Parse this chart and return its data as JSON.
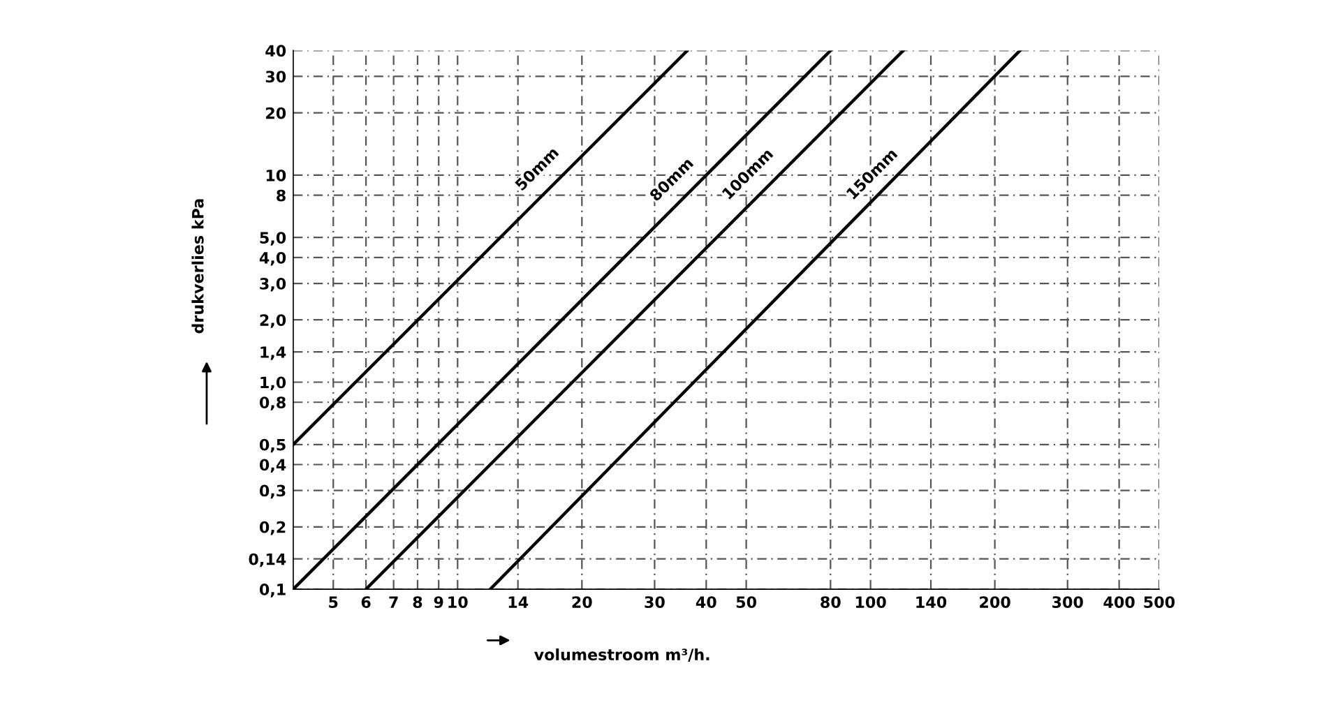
{
  "chart_data": {
    "type": "line",
    "log": "xy",
    "xlabel": "volumestroom m³/h.",
    "ylabel": "drukverlies kPa",
    "xlim": [
      4,
      500
    ],
    "ylim": [
      0.1,
      40
    ],
    "xticks": [
      5,
      6,
      7,
      8,
      9,
      10,
      14,
      20,
      30,
      40,
      50,
      80,
      100,
      140,
      200,
      300,
      400,
      500
    ],
    "yticks": [
      {
        "value": 0.1,
        "label": "0,1"
      },
      {
        "value": 0.14,
        "label": "0,14"
      },
      {
        "value": 0.2,
        "label": "0,2"
      },
      {
        "value": 0.3,
        "label": "0,3"
      },
      {
        "value": 0.4,
        "label": "0,4"
      },
      {
        "value": 0.5,
        "label": "0,5"
      },
      {
        "value": 0.8,
        "label": "0,8"
      },
      {
        "value": 1.0,
        "label": "1,0"
      },
      {
        "value": 1.4,
        "label": "1,4"
      },
      {
        "value": 2.0,
        "label": "2,0"
      },
      {
        "value": 3.0,
        "label": "3,0"
      },
      {
        "value": 4.0,
        "label": "4,0"
      },
      {
        "value": 5.0,
        "label": "5,0"
      },
      8,
      10,
      20,
      30,
      40
    ],
    "grid": true,
    "marker": "none",
    "line_style": "solid",
    "series": [
      {
        "color": "#000000",
        "x": [
          4,
          36
        ],
        "values": [
          0.5,
          40
        ]
      },
      {
        "color": "#000000",
        "x": [
          4,
          80
        ],
        "values": [
          0.1,
          40
        ]
      },
      {
        "color": "#000000",
        "x": [
          6,
          120
        ],
        "values": [
          0.1,
          40
        ]
      },
      {
        "color": "#000000",
        "x": [
          12,
          230
        ],
        "values": [
          0.1,
          40
        ]
      }
    ],
    "annotations": [
      {
        "text": "50mm",
        "x": 17,
        "y": 9
      },
      {
        "text": "80mm",
        "x": 36,
        "y": 8
      },
      {
        "text": "100mm",
        "x": 55,
        "y": 8.5
      },
      {
        "text": "150mm",
        "x": 110,
        "y": 8.5
      }
    ]
  }
}
